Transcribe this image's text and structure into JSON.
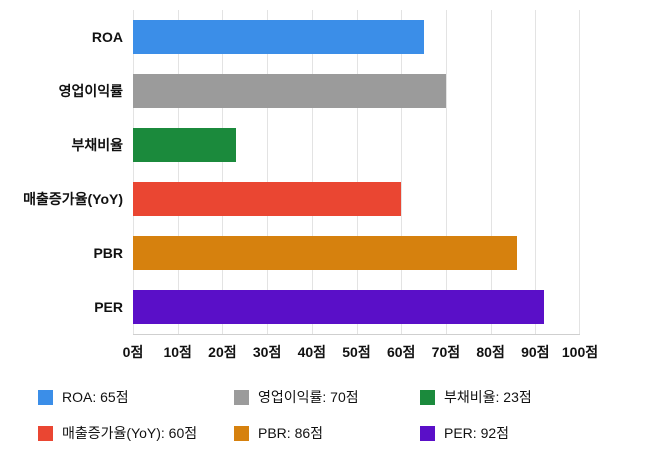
{
  "chart_data": {
    "type": "bar",
    "orientation": "horizontal",
    "title": "",
    "xlabel": "",
    "ylabel": "",
    "unit": "점",
    "xlim": [
      0,
      100
    ],
    "grid": true,
    "legend_position": "bottom",
    "categories": [
      "ROA",
      "영업이익률",
      "부채비율",
      "매출증가율(YoY)",
      "PBR",
      "PER"
    ],
    "values": [
      65,
      70,
      23,
      60,
      86,
      92
    ],
    "colors": [
      "#3B8EE8",
      "#9B9B9B",
      "#1B8A3C",
      "#EA4632",
      "#D6810E",
      "#5A0FC8"
    ],
    "x_ticks": [
      "0점",
      "10점",
      "20점",
      "30점",
      "40점",
      "50점",
      "60점",
      "70점",
      "80점",
      "90점",
      "100점"
    ],
    "legend": [
      {
        "label": "ROA: 65점",
        "color": "#3B8EE8"
      },
      {
        "label": "영업이익률: 70점",
        "color": "#9B9B9B"
      },
      {
        "label": "부채비율: 23점",
        "color": "#1B8A3C"
      },
      {
        "label": "매출증가율(YoY): 60점",
        "color": "#EA4632"
      },
      {
        "label": "PBR: 86점",
        "color": "#D6810E"
      },
      {
        "label": "PER: 92점",
        "color": "#5A0FC8"
      }
    ]
  }
}
